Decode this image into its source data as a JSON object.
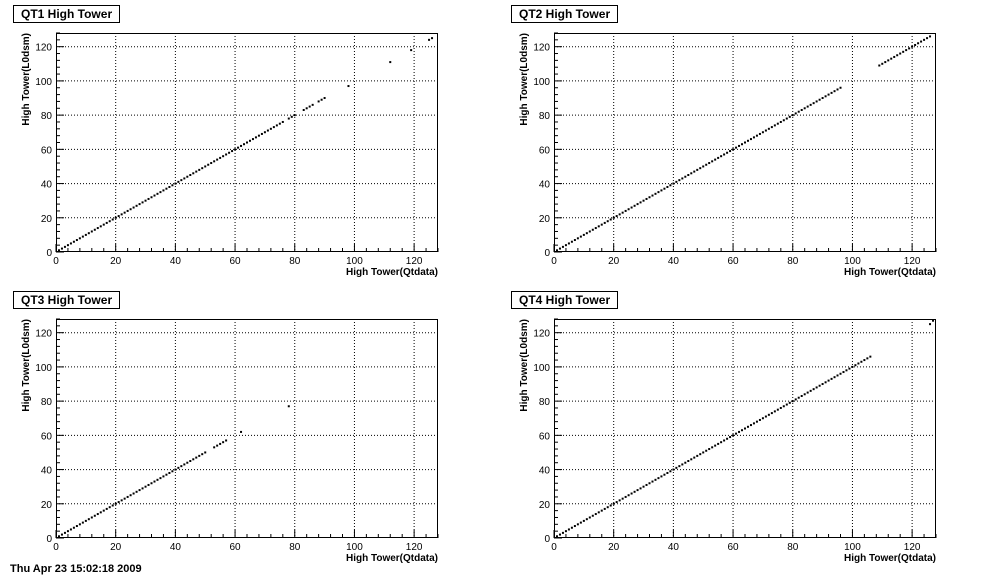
{
  "chart_data": [
    {
      "type": "scatter",
      "title": "QT1 High Tower",
      "xlabel": "High Tower(Qtdata)",
      "ylabel": "High Tower(L0dsm)",
      "xlim": [
        0,
        128
      ],
      "ylim": [
        0,
        128
      ],
      "xticks": [
        0,
        20,
        40,
        60,
        80,
        100,
        120
      ],
      "yticks": [
        0,
        20,
        40,
        60,
        80,
        100,
        120
      ],
      "grid": true,
      "ranges": [
        [
          1,
          76
        ],
        [
          78,
          80
        ],
        [
          83,
          86
        ],
        [
          88,
          90
        ]
      ],
      "points": [
        [
          98,
          97
        ],
        [
          112,
          111
        ],
        [
          119,
          118
        ],
        [
          125,
          124
        ],
        [
          126,
          125
        ]
      ]
    },
    {
      "type": "scatter",
      "title": "QT2 High Tower",
      "xlabel": "High Tower(Qtdata)",
      "ylabel": "High Tower(L0dsm)",
      "xlim": [
        0,
        128
      ],
      "ylim": [
        0,
        128
      ],
      "xticks": [
        0,
        20,
        40,
        60,
        80,
        100,
        120
      ],
      "yticks": [
        0,
        20,
        40,
        60,
        80,
        100,
        120
      ],
      "grid": true,
      "ranges": [
        [
          1,
          96
        ],
        [
          109,
          126
        ]
      ],
      "points": []
    },
    {
      "type": "scatter",
      "title": "QT3 High Tower",
      "xlabel": "High Tower(Qtdata)",
      "ylabel": "High Tower(L0dsm)",
      "xlim": [
        0,
        128
      ],
      "ylim": [
        0,
        128
      ],
      "xticks": [
        0,
        20,
        40,
        60,
        80,
        100,
        120
      ],
      "yticks": [
        0,
        20,
        40,
        60,
        80,
        100,
        120
      ],
      "grid": true,
      "ranges": [
        [
          1,
          50
        ],
        [
          53,
          57
        ]
      ],
      "points": [
        [
          62,
          62
        ],
        [
          78,
          77
        ]
      ]
    },
    {
      "type": "scatter",
      "title": "QT4 High Tower",
      "xlabel": "High Tower(Qtdata)",
      "ylabel": "High Tower(L0dsm)",
      "xlim": [
        0,
        128
      ],
      "ylim": [
        0,
        128
      ],
      "xticks": [
        0,
        20,
        40,
        60,
        80,
        100,
        120
      ],
      "yticks": [
        0,
        20,
        40,
        60,
        80,
        100,
        120
      ],
      "grid": true,
      "ranges": [
        [
          1,
          106
        ]
      ],
      "points": [
        [
          126,
          125
        ],
        [
          127,
          127
        ]
      ]
    }
  ],
  "footer": {
    "text": "Thu Apr 23 15:02:18 2009"
  },
  "colors": {
    "marker": "#000000",
    "grid": "#000000",
    "background": "#ffffff"
  }
}
